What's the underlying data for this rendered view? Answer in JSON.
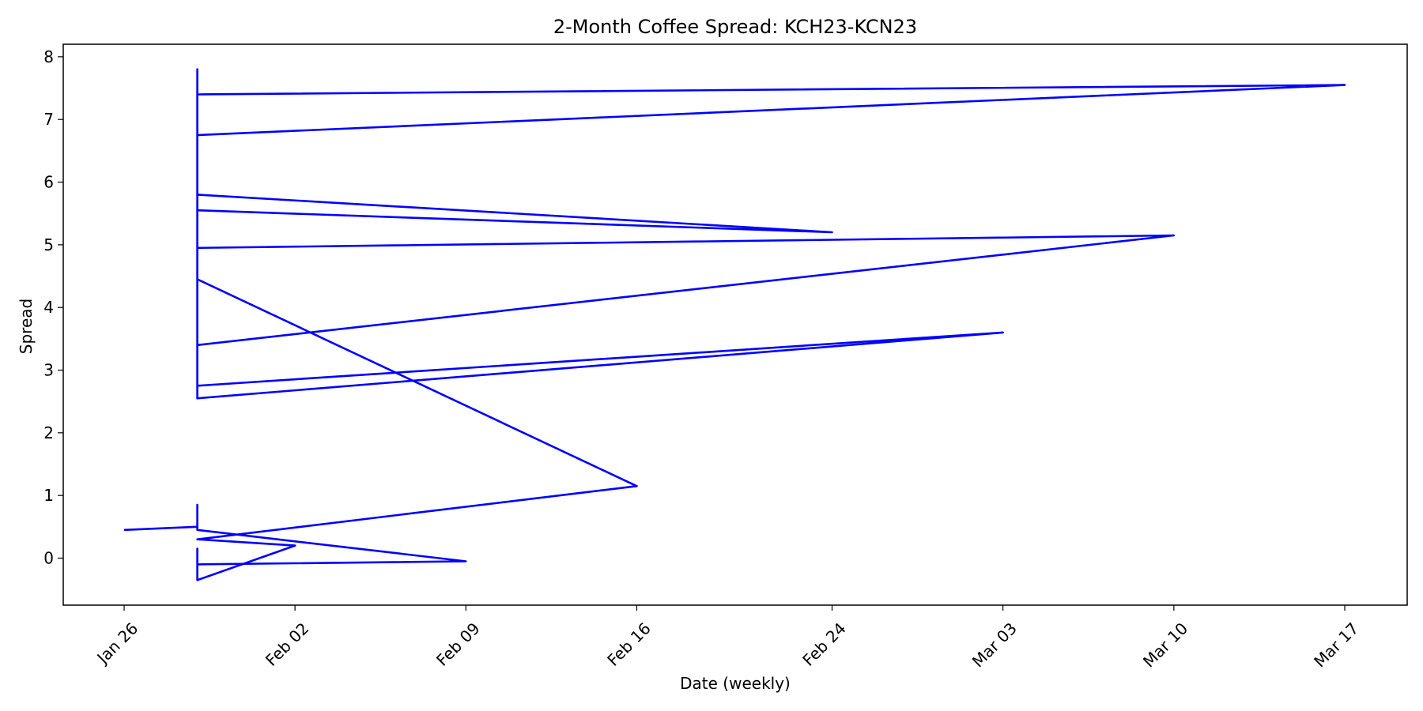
{
  "chart_data": {
    "type": "line",
    "title": "2-Month Coffee Spread: KCH23-KCN23",
    "xlabel": "Date (weekly)",
    "ylabel": "Spread",
    "grid": false,
    "series_color": "#0000ff",
    "x_tick_labels": [
      "Jan 26",
      "Feb 02",
      "Feb 09",
      "Feb 16",
      "Feb 24",
      "Mar 03",
      "Mar 10",
      "Mar 17"
    ],
    "y_tick_labels": [
      "0",
      "1",
      "2",
      "3",
      "4",
      "5",
      "6",
      "7",
      "8"
    ],
    "ylim": [
      -0.75,
      8.2
    ],
    "series": [
      {
        "points": [
          {
            "x": "Jan 26",
            "y": 0.45
          },
          {
            "x": "Jan 29",
            "y": 0.5
          },
          {
            "x": "Jan 29",
            "y": 0.85
          },
          {
            "x": "Jan 29",
            "y": 0.45
          },
          {
            "x": "Feb 09",
            "y": -0.05
          },
          {
            "x": "Jan 29",
            "y": -0.1
          },
          {
            "x": "Jan 29",
            "y": 0.15
          },
          {
            "x": "Jan 29",
            "y": -0.35
          },
          {
            "x": "Feb 02",
            "y": 0.2
          },
          {
            "x": "Jan 29",
            "y": 0.3
          },
          {
            "x": "Feb 16",
            "y": 1.15
          },
          {
            "x": "Jan 29",
            "y": 4.45
          },
          {
            "x": "Jan 29",
            "y": 3.4
          },
          {
            "x": "Mar 10",
            "y": 5.15
          },
          {
            "x": "Jan 29",
            "y": 4.95
          },
          {
            "x": "Jan 29",
            "y": 5.55
          },
          {
            "x": "Feb 24",
            "y": 5.2
          },
          {
            "x": "Jan 29",
            "y": 5.8
          },
          {
            "x": "Jan 29",
            "y": 2.55
          },
          {
            "x": "Mar 03",
            "y": 3.6
          },
          {
            "x": "Jan 29",
            "y": 2.75
          },
          {
            "x": "Jan 29",
            "y": 7.8
          },
          {
            "x": "Jan 29",
            "y": 6.75
          },
          {
            "x": "Mar 17",
            "y": 7.55
          },
          {
            "x": "Jan 29",
            "y": 7.4
          }
        ]
      }
    ]
  }
}
